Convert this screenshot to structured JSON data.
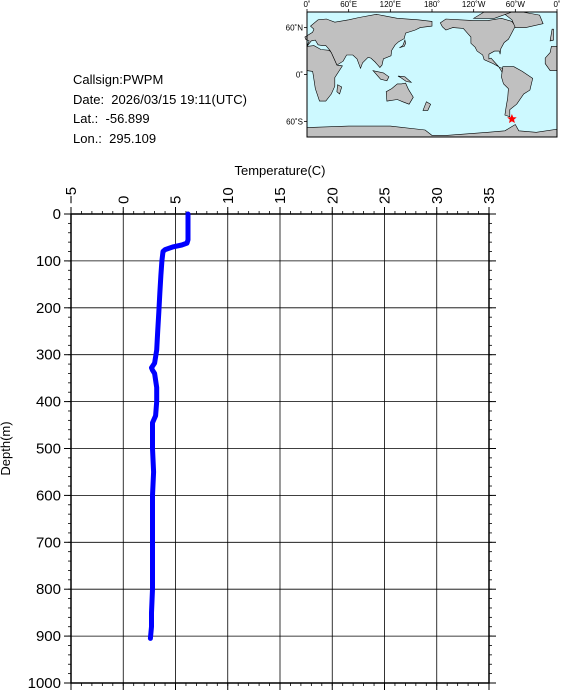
{
  "station": {
    "callsign": "Callsign:PWPM",
    "date": "Date:  2026/03/15 19:11(UTC)",
    "lat": "Lat.:  -56.899",
    "lon": "Lon.:  295.109"
  },
  "map": {
    "top_labels": [
      "0˚",
      "60˚E",
      "120˚E",
      "180˚",
      "120˚W",
      "60˚W",
      "0˚"
    ],
    "left_labels": [
      "60˚N",
      "0˚",
      "60˚S"
    ],
    "ocean_color": "#cdf9ff",
    "land_color": "#c0c0c0",
    "marker_color": "#ff0000",
    "marker_lon": 295.109,
    "marker_lat": -56.899
  },
  "chart_data": {
    "type": "line",
    "title": "",
    "xlabel": "Temperature(C)",
    "ylabel": "Depth(m)",
    "xlim": [
      -5,
      35
    ],
    "ylim": [
      0,
      1000
    ],
    "y_inverted": true,
    "x_axis_position": "top",
    "x_ticks": [
      -5,
      0,
      5,
      10,
      15,
      20,
      25,
      30,
      35
    ],
    "x_tick_labels": [
      "−5",
      "0",
      "5",
      "10",
      "15",
      "20",
      "25",
      "30",
      "35"
    ],
    "y_ticks": [
      0,
      100,
      200,
      300,
      400,
      500,
      600,
      700,
      800,
      900,
      1000
    ],
    "y_tick_labels": [
      "0",
      "100",
      "200",
      "300",
      "400",
      "500",
      "600",
      "700",
      "800",
      "900",
      "1000"
    ],
    "grid": true,
    "series": [
      {
        "color": "#0000ff",
        "points": [
          [
            6.2,
            0
          ],
          [
            6.2,
            30
          ],
          [
            6.2,
            55
          ],
          [
            6.1,
            62
          ],
          [
            5.6,
            66
          ],
          [
            4.8,
            70
          ],
          [
            4.0,
            76
          ],
          [
            3.8,
            80
          ],
          [
            3.7,
            100
          ],
          [
            3.6,
            130
          ],
          [
            3.5,
            170
          ],
          [
            3.4,
            210
          ],
          [
            3.3,
            250
          ],
          [
            3.2,
            290
          ],
          [
            3.0,
            318
          ],
          [
            2.7,
            328
          ],
          [
            2.8,
            333
          ],
          [
            3.0,
            340
          ],
          [
            3.2,
            370
          ],
          [
            3.2,
            400
          ],
          [
            3.1,
            430
          ],
          [
            2.8,
            445
          ],
          [
            2.8,
            470
          ],
          [
            2.8,
            500
          ],
          [
            2.9,
            550
          ],
          [
            2.8,
            600
          ],
          [
            2.8,
            650
          ],
          [
            2.8,
            700
          ],
          [
            2.8,
            750
          ],
          [
            2.8,
            800
          ],
          [
            2.7,
            850
          ],
          [
            2.7,
            880
          ],
          [
            2.6,
            905
          ]
        ]
      }
    ]
  }
}
